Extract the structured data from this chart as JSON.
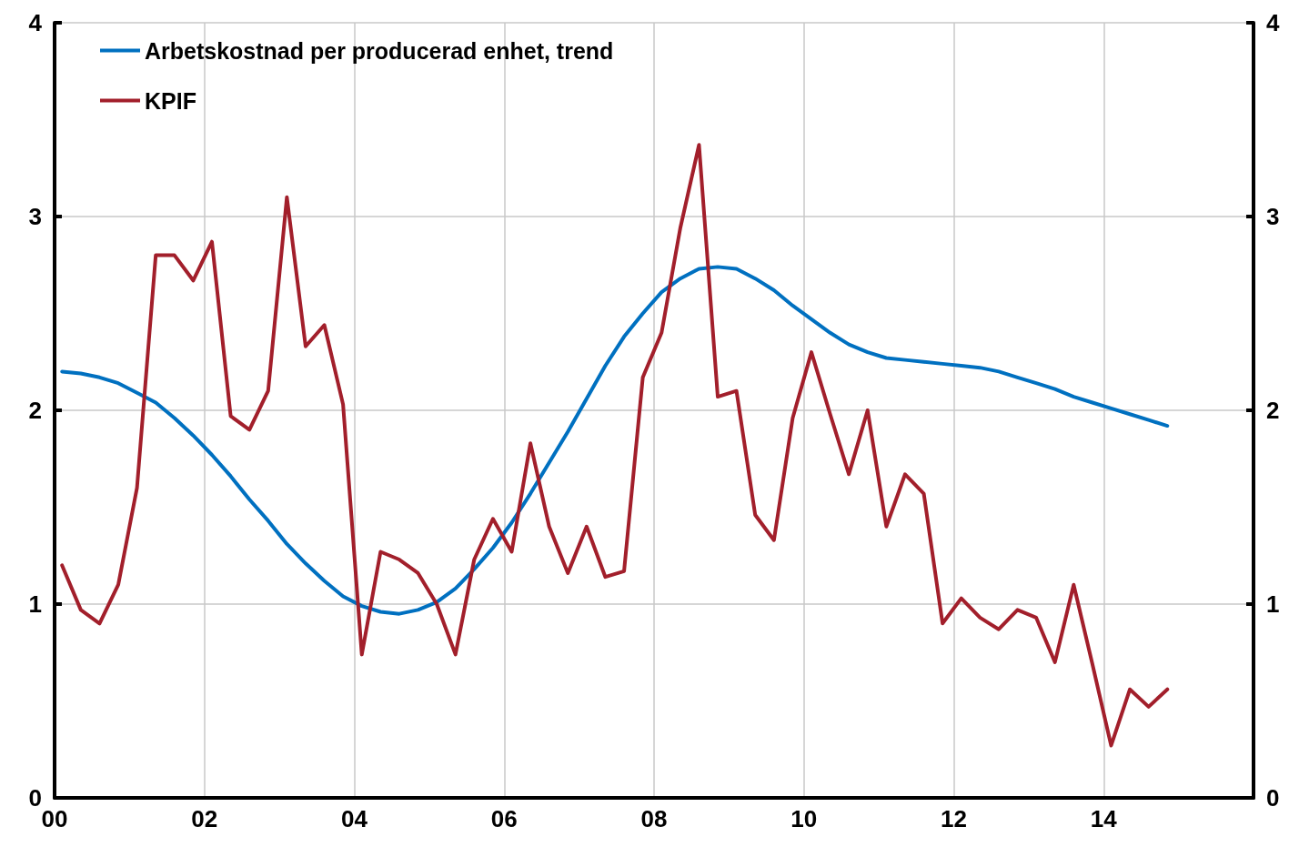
{
  "chart_data": {
    "type": "line",
    "xlim": [
      0,
      16
    ],
    "xticks": [
      {
        "value": 0,
        "label": "00"
      },
      {
        "value": 2,
        "label": "02"
      },
      {
        "value": 4,
        "label": "04"
      },
      {
        "value": 6,
        "label": "06"
      },
      {
        "value": 8,
        "label": "08"
      },
      {
        "value": 10,
        "label": "10"
      },
      {
        "value": 12,
        "label": "12"
      },
      {
        "value": 14,
        "label": "14"
      },
      {
        "value": 16,
        "label": null
      }
    ],
    "ylim": [
      0,
      4
    ],
    "yticks": [
      0,
      1,
      2,
      3,
      4
    ],
    "y2lim": [
      0,
      4
    ],
    "y2ticks": [
      0,
      1,
      2,
      3,
      4
    ],
    "grid": true,
    "legend": "top left",
    "marker": "none",
    "line_style": "solid",
    "x": [
      0.1,
      0.35,
      0.6,
      0.85,
      1.1,
      1.35,
      1.6,
      1.85,
      2.1,
      2.35,
      2.6,
      2.85,
      3.1,
      3.35,
      3.6,
      3.85,
      4.1,
      4.35,
      4.6,
      4.85,
      5.1,
      5.35,
      5.6,
      5.85,
      6.1,
      6.35,
      6.6,
      6.85,
      7.1,
      7.35,
      7.6,
      7.85,
      8.1,
      8.35,
      8.6,
      8.85,
      9.1,
      9.35,
      9.6,
      9.85,
      10.1,
      10.35,
      10.6,
      10.85,
      11.1,
      11.35,
      11.6,
      11.85,
      12.1,
      12.35,
      12.6,
      12.85,
      13.1,
      13.35,
      13.6,
      13.85,
      14.1,
      14.35,
      14.6,
      14.85
    ],
    "series": [
      {
        "name": "Arbetskostnad per producerad enhet, trend",
        "color": "#0070c0",
        "values": [
          2.2,
          2.19,
          2.17,
          2.14,
          2.09,
          2.04,
          1.96,
          1.87,
          1.77,
          1.66,
          1.54,
          1.43,
          1.31,
          1.21,
          1.12,
          1.04,
          0.99,
          0.96,
          0.95,
          0.97,
          1.01,
          1.08,
          1.18,
          1.29,
          1.42,
          1.57,
          1.73,
          1.89,
          2.06,
          2.23,
          2.38,
          2.5,
          2.61,
          2.68,
          2.73,
          2.74,
          2.73,
          2.68,
          2.62,
          2.54,
          2.47,
          2.4,
          2.34,
          2.3,
          2.27,
          2.26,
          2.25,
          2.24,
          2.23,
          2.22,
          2.2,
          2.17,
          2.14,
          2.11,
          2.07,
          2.04,
          2.01,
          1.98,
          1.95,
          1.92
        ]
      },
      {
        "name": "KPIF",
        "color": "#a21f2b",
        "values": [
          1.2,
          0.97,
          0.9,
          1.1,
          1.6,
          2.8,
          2.8,
          2.67,
          2.87,
          1.97,
          1.9,
          2.1,
          3.1,
          2.33,
          2.44,
          2.03,
          0.74,
          1.27,
          1.23,
          1.16,
          1.0,
          0.74,
          1.23,
          1.44,
          1.27,
          1.83,
          1.4,
          1.16,
          1.4,
          1.14,
          1.17,
          2.17,
          2.4,
          2.94,
          3.37,
          2.07,
          2.1,
          1.46,
          1.33,
          1.96,
          2.3,
          1.98,
          1.67,
          2.0,
          1.4,
          1.67,
          1.57,
          0.9,
          1.03,
          0.93,
          0.87,
          0.97,
          0.93,
          0.7,
          1.1,
          0.69,
          0.27,
          0.56,
          0.47,
          0.56
        ]
      }
    ]
  }
}
